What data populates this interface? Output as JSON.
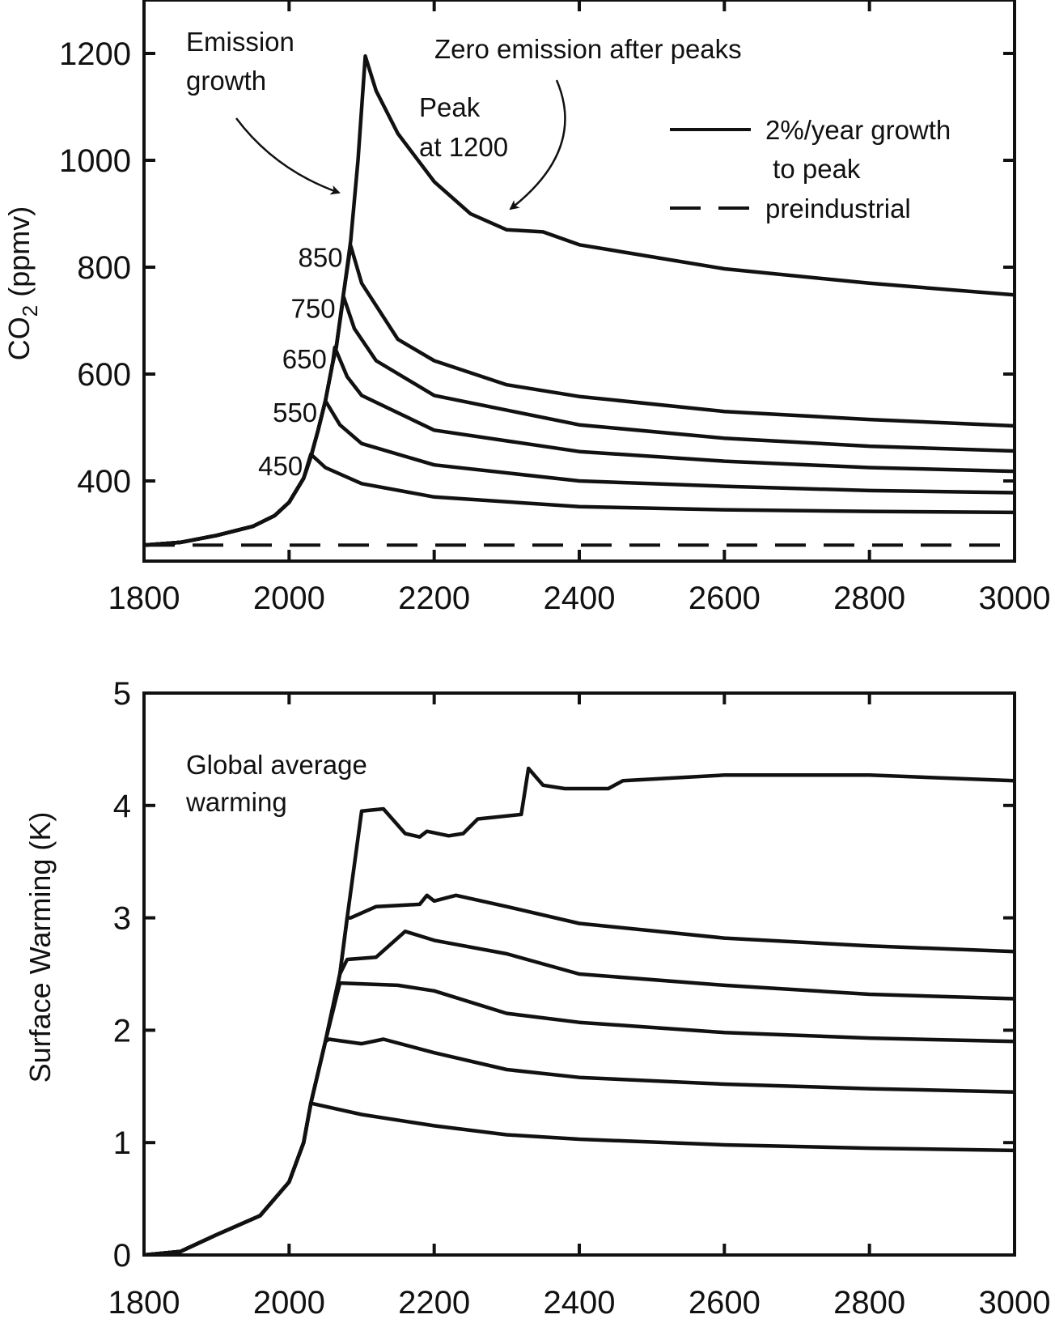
{
  "chart_data": [
    {
      "type": "line",
      "ylabel": "CO2 (ppmv)",
      "ylabel_main": "CO",
      "ylabel_sub": "2",
      "ylabel_unit": " (ppmv)",
      "xlim": [
        1800,
        3000
      ],
      "ylim": [
        250,
        1300
      ],
      "xticks": [
        1800,
        2000,
        2200,
        2400,
        2600,
        2800,
        3000
      ],
      "yticks": [
        400,
        600,
        800,
        1000,
        1200
      ],
      "grid": false,
      "legend": {
        "placement": "top-right",
        "entries": [
          {
            "style": "solid",
            "line1": "2%/year growth",
            "line2": " to peak"
          },
          {
            "style": "dashed",
            "line1": "preindustrial"
          }
        ]
      },
      "annotations": {
        "emission_growth": [
          "Emission",
          "growth"
        ],
        "zero_emission": "Zero emission after peaks",
        "peak_1200": [
          "Peak",
          "at 1200"
        ]
      },
      "growth_curve": [
        [
          1800,
          280
        ],
        [
          1850,
          285
        ],
        [
          1900,
          298
        ],
        [
          1950,
          315
        ],
        [
          1980,
          335
        ],
        [
          2000,
          360
        ],
        [
          2020,
          405
        ],
        [
          2030,
          445
        ],
        [
          2040,
          495
        ],
        [
          2050,
          550
        ],
        [
          2060,
          620
        ],
        [
          2065,
          650
        ],
        [
          2075,
          750
        ],
        [
          2085,
          850
        ],
        [
          2095,
          1000
        ],
        [
          2105,
          1195
        ]
      ],
      "preindustrial": 280,
      "series": [
        {
          "label": "450",
          "points": [
            [
              2030,
              450
            ],
            [
              2050,
              425
            ],
            [
              2100,
              395
            ],
            [
              2200,
              370
            ],
            [
              2400,
              352
            ],
            [
              2600,
              346
            ],
            [
              2800,
              343
            ],
            [
              3000,
              341
            ]
          ]
        },
        {
          "label": "550",
          "points": [
            [
              2050,
              550
            ],
            [
              2070,
              505
            ],
            [
              2100,
              470
            ],
            [
              2200,
              430
            ],
            [
              2400,
              400
            ],
            [
              2600,
              390
            ],
            [
              2800,
              382
            ],
            [
              3000,
              378
            ]
          ]
        },
        {
          "label": "650",
          "points": [
            [
              2063,
              650
            ],
            [
              2080,
              595
            ],
            [
              2100,
              560
            ],
            [
              2200,
              495
            ],
            [
              2400,
              455
            ],
            [
              2600,
              437
            ],
            [
              2800,
              425
            ],
            [
              3000,
              418
            ]
          ]
        },
        {
          "label": "750",
          "points": [
            [
              2075,
              745
            ],
            [
              2090,
              685
            ],
            [
              2120,
              625
            ],
            [
              2200,
              560
            ],
            [
              2400,
              505
            ],
            [
              2600,
              480
            ],
            [
              2800,
              465
            ],
            [
              3000,
              456
            ]
          ]
        },
        {
          "label": "850",
          "points": [
            [
              2085,
              840
            ],
            [
              2100,
              770
            ],
            [
              2150,
              665
            ],
            [
              2200,
              625
            ],
            [
              2300,
              580
            ],
            [
              2400,
              558
            ],
            [
              2600,
              530
            ],
            [
              2800,
              515
            ],
            [
              3000,
              503
            ]
          ]
        },
        {
          "label": "",
          "points": [
            [
              2105,
              1195
            ],
            [
              2120,
              1130
            ],
            [
              2150,
              1050
            ],
            [
              2200,
              960
            ],
            [
              2250,
              900
            ],
            [
              2300,
              870
            ],
            [
              2350,
              866
            ],
            [
              2400,
              842
            ],
            [
              2600,
              797
            ],
            [
              2800,
              770
            ],
            [
              3000,
              748
            ]
          ]
        }
      ]
    },
    {
      "type": "line",
      "ylabel": "Surface Warming (K)",
      "xlim": [
        1800,
        3000
      ],
      "ylim": [
        0,
        5
      ],
      "xticks": [
        1800,
        2000,
        2200,
        2400,
        2600,
        2800,
        3000
      ],
      "yticks": [
        0,
        1,
        2,
        3,
        4,
        5
      ],
      "grid": false,
      "annotations": {
        "global_average": [
          "Global average",
          "warming"
        ]
      },
      "growth_curve": [
        [
          1800,
          0
        ],
        [
          1850,
          0.03
        ],
        [
          1900,
          0.18
        ],
        [
          1960,
          0.35
        ],
        [
          2000,
          0.65
        ],
        [
          2020,
          1.0
        ],
        [
          2030,
          1.35
        ],
        [
          2050,
          1.9
        ],
        [
          2070,
          2.5
        ],
        [
          2080,
          3.0
        ],
        [
          2100,
          3.9
        ]
      ],
      "series": [
        {
          "points": [
            [
              2030,
              1.35
            ],
            [
              2100,
              1.25
            ],
            [
              2200,
              1.15
            ],
            [
              2300,
              1.07
            ],
            [
              2400,
              1.03
            ],
            [
              2600,
              0.98
            ],
            [
              2800,
              0.95
            ],
            [
              3000,
              0.93
            ]
          ]
        },
        {
          "points": [
            [
              2055,
              1.92
            ],
            [
              2100,
              1.88
            ],
            [
              2130,
              1.92
            ],
            [
              2200,
              1.8
            ],
            [
              2300,
              1.65
            ],
            [
              2400,
              1.58
            ],
            [
              2600,
              1.52
            ],
            [
              2800,
              1.48
            ],
            [
              3000,
              1.45
            ]
          ]
        },
        {
          "points": [
            [
              2070,
              2.42
            ],
            [
              2150,
              2.4
            ],
            [
              2200,
              2.35
            ],
            [
              2300,
              2.15
            ],
            [
              2400,
              2.07
            ],
            [
              2600,
              1.98
            ],
            [
              2800,
              1.93
            ],
            [
              3000,
              1.9
            ]
          ]
        },
        {
          "points": [
            [
              2080,
              2.63
            ],
            [
              2120,
              2.65
            ],
            [
              2160,
              2.88
            ],
            [
              2200,
              2.8
            ],
            [
              2300,
              2.68
            ],
            [
              2400,
              2.5
            ],
            [
              2600,
              2.4
            ],
            [
              2800,
              2.32
            ],
            [
              3000,
              2.28
            ]
          ]
        },
        {
          "points": [
            [
              2085,
              3.0
            ],
            [
              2120,
              3.1
            ],
            [
              2180,
              3.12
            ],
            [
              2190,
              3.2
            ],
            [
              2200,
              3.15
            ],
            [
              2230,
              3.2
            ],
            [
              2300,
              3.1
            ],
            [
              2400,
              2.95
            ],
            [
              2600,
              2.82
            ],
            [
              2800,
              2.75
            ],
            [
              3000,
              2.7
            ]
          ]
        },
        {
          "points": [
            [
              2100,
              3.95
            ],
            [
              2130,
              3.97
            ],
            [
              2160,
              3.75
            ],
            [
              2180,
              3.72
            ],
            [
              2190,
              3.77
            ],
            [
              2220,
              3.73
            ],
            [
              2240,
              3.75
            ],
            [
              2260,
              3.88
            ],
            [
              2320,
              3.92
            ],
            [
              2330,
              4.33
            ],
            [
              2350,
              4.18
            ],
            [
              2380,
              4.15
            ],
            [
              2440,
              4.15
            ],
            [
              2460,
              4.22
            ],
            [
              2600,
              4.27
            ],
            [
              2800,
              4.27
            ],
            [
              3000,
              4.22
            ]
          ]
        }
      ]
    }
  ]
}
